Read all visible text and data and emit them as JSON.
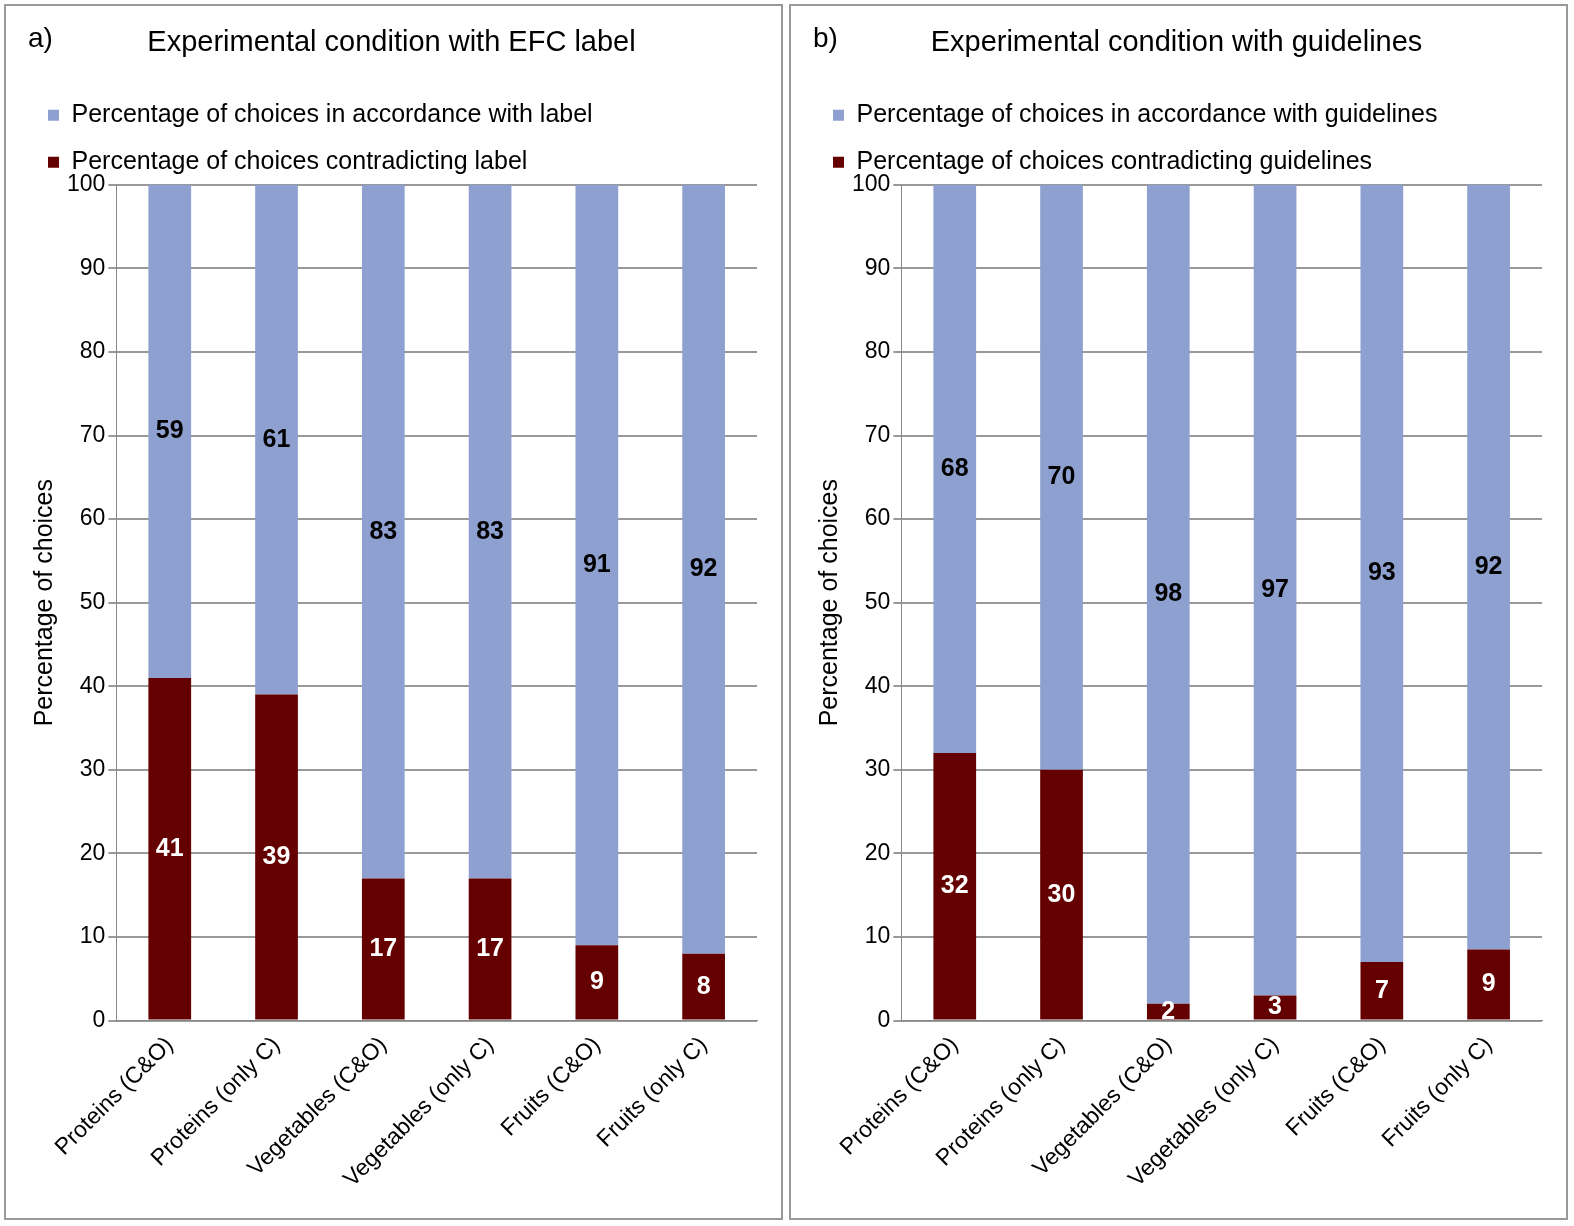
{
  "chart_data": [
    {
      "type": "bar",
      "title": "Experimental condition with EFC label",
      "ylabel": "Percentage of choices",
      "annotations": [
        "a)"
      ],
      "categories": [
        "Proteins (C&O)",
        "Proteins (only C)",
        "Vegetables (C&O)",
        "Vegetables (only C)",
        "Fruits (C&O)",
        "Fruits (only C)"
      ],
      "stacked": true,
      "data_labels": true,
      "grid": "y",
      "legend": "top",
      "ylim": [
        0,
        100
      ],
      "yticks": [
        0,
        10,
        20,
        30,
        40,
        50,
        60,
        70,
        80,
        90,
        100
      ],
      "series": [
        {
          "name": "Percentage of choices contradicting label",
          "color": "#650000",
          "values": [
            41,
            39,
            17,
            17,
            9,
            8
          ]
        },
        {
          "name": "Percentage of choices in accordance with label",
          "color": "#8ea0d0",
          "values": [
            59,
            61,
            83,
            83,
            91,
            92
          ]
        }
      ]
    },
    {
      "type": "bar",
      "title": "Experimental condition with guidelines",
      "ylabel": "Percentage of choices",
      "annotations": [
        "b)"
      ],
      "categories": [
        "Proteins (C&O)",
        "Proteins (only C)",
        "Vegetables (C&O)",
        "Vegetables (only C)",
        "Fruits (C&O)",
        "Fruits (only C)"
      ],
      "stacked": true,
      "grid": "y",
      "legend": "top",
      "ylim": [
        0,
        100
      ],
      "yticks": [
        0,
        10,
        20,
        30,
        40,
        50,
        60,
        70,
        80,
        90,
        100
      ],
      "series": [
        {
          "name": "Percentage of choices contradicting guidelines",
          "color": "#650000",
          "values": [
            32,
            30,
            2,
            3,
            7,
            8.5
          ],
          "value_labels": [
            "32",
            "30",
            "2",
            "3",
            "7",
            "9"
          ]
        },
        {
          "name": "Percentage of choices in accordance with guidelines",
          "color": "#8ea0d0",
          "values": [
            68,
            70,
            98,
            97,
            93,
            91.5
          ],
          "value_labels": [
            "68",
            "70",
            "98",
            "97",
            "93",
            "92"
          ]
        }
      ]
    }
  ]
}
